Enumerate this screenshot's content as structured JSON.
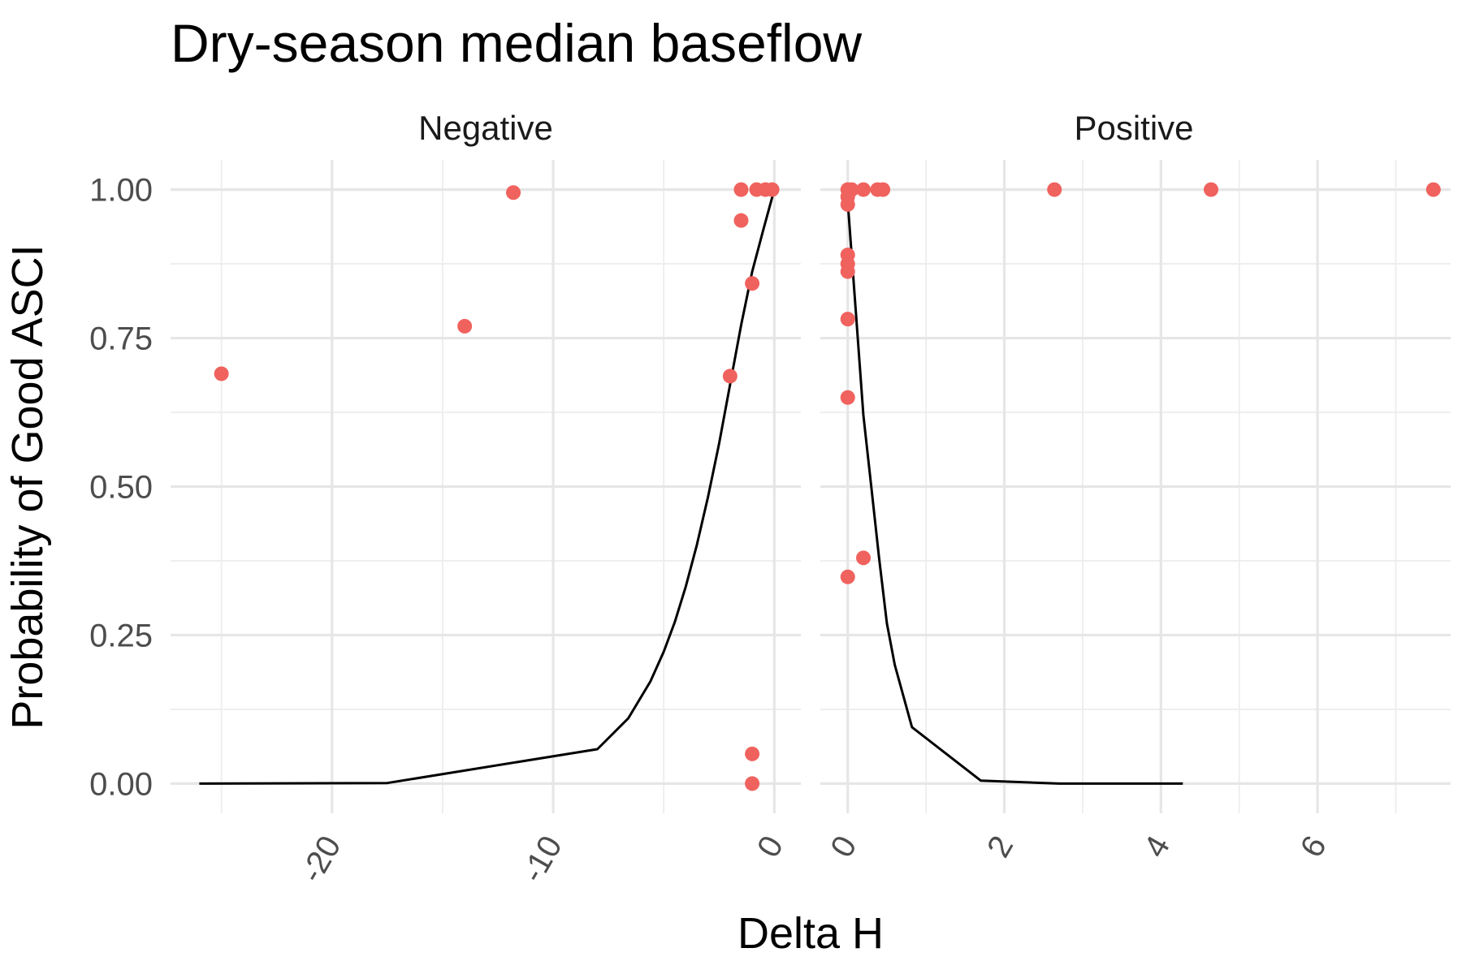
{
  "chart_data": {
    "type": "scatter",
    "title": "Dry-season median baseflow",
    "xlabel": "Delta H",
    "ylabel": "Probability of Good ASCI",
    "ylim": [
      0,
      1
    ],
    "y_ticks": [
      "0.00",
      "0.25",
      "0.50",
      "0.75",
      "1.00"
    ],
    "y_tick_values": [
      0,
      0.25,
      0.5,
      0.75,
      1
    ],
    "point_color": "#f0625e",
    "line_color": "#000000",
    "grid": true,
    "panels": [
      {
        "label": "Negative",
        "xlim": [
          -27.3,
          1.2
        ],
        "x_major": [
          -20,
          -10,
          0
        ],
        "x_minor": [
          -25,
          -15,
          -5
        ],
        "x_tick_labels": [
          "-20",
          "-10",
          "0"
        ],
        "points": [
          {
            "x": -25.0,
            "y": 0.69
          },
          {
            "x": -14.0,
            "y": 0.77
          },
          {
            "x": -11.8,
            "y": 0.995
          },
          {
            "x": -1.5,
            "y": 1.0
          },
          {
            "x": -0.8,
            "y": 1.0
          },
          {
            "x": -0.4,
            "y": 1.0
          },
          {
            "x": -0.1,
            "y": 1.0
          },
          {
            "x": -1.5,
            "y": 0.948
          },
          {
            "x": -1.0,
            "y": 0.842
          },
          {
            "x": -2.0,
            "y": 0.686
          },
          {
            "x": -1.0,
            "y": 0.05
          },
          {
            "x": -1.0,
            "y": 0.0
          }
        ],
        "curve": [
          {
            "x": -26.0,
            "y": 0.0
          },
          {
            "x": -17.5,
            "y": 0.001
          },
          {
            "x": -8.0,
            "y": 0.058
          },
          {
            "x": -6.6,
            "y": 0.11
          },
          {
            "x": -5.6,
            "y": 0.172
          },
          {
            "x": -5.0,
            "y": 0.222
          },
          {
            "x": -4.5,
            "y": 0.272
          },
          {
            "x": -4.0,
            "y": 0.332
          },
          {
            "x": -3.5,
            "y": 0.402
          },
          {
            "x": -3.0,
            "y": 0.482
          },
          {
            "x": -2.5,
            "y": 0.572
          },
          {
            "x": -2.0,
            "y": 0.672
          },
          {
            "x": -1.5,
            "y": 0.772
          },
          {
            "x": -1.0,
            "y": 0.862
          },
          {
            "x": -0.5,
            "y": 0.932
          },
          {
            "x": 0.0,
            "y": 1.0
          }
        ]
      },
      {
        "label": "Positive",
        "xlim": [
          -0.35,
          7.7
        ],
        "x_major": [
          0,
          2,
          4,
          6
        ],
        "x_minor": [
          1,
          3,
          5,
          7
        ],
        "x_tick_labels": [
          "0",
          "2",
          "4",
          "6"
        ],
        "points": [
          {
            "x": 0.0,
            "y": 1.0
          },
          {
            "x": 0.05,
            "y": 1.0
          },
          {
            "x": 0.2,
            "y": 1.0
          },
          {
            "x": 0.38,
            "y": 1.0
          },
          {
            "x": 0.45,
            "y": 1.0
          },
          {
            "x": 0.0,
            "y": 0.988
          },
          {
            "x": 0.0,
            "y": 0.975
          },
          {
            "x": 0.0,
            "y": 0.89
          },
          {
            "x": 0.0,
            "y": 0.875
          },
          {
            "x": 0.0,
            "y": 0.862
          },
          {
            "x": 0.0,
            "y": 0.782
          },
          {
            "x": 0.0,
            "y": 0.65
          },
          {
            "x": 0.2,
            "y": 0.38
          },
          {
            "x": 0.0,
            "y": 0.348
          },
          {
            "x": 2.64,
            "y": 1.0
          },
          {
            "x": 4.64,
            "y": 1.0
          },
          {
            "x": 7.48,
            "y": 1.0
          }
        ],
        "curve": [
          {
            "x": 0.0,
            "y": 0.98
          },
          {
            "x": 0.1,
            "y": 0.8
          },
          {
            "x": 0.2,
            "y": 0.62
          },
          {
            "x": 0.3,
            "y": 0.5
          },
          {
            "x": 0.4,
            "y": 0.38
          },
          {
            "x": 0.5,
            "y": 0.27
          },
          {
            "x": 0.6,
            "y": 0.2
          },
          {
            "x": 0.82,
            "y": 0.095
          },
          {
            "x": 1.7,
            "y": 0.005
          },
          {
            "x": 2.7,
            "y": 0.0
          },
          {
            "x": 4.28,
            "y": 0.0
          }
        ]
      }
    ]
  }
}
